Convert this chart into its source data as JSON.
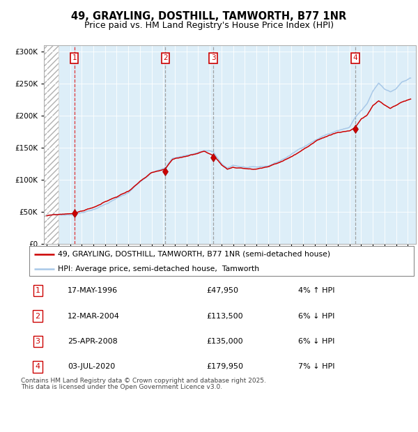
{
  "title": "49, GRAYLING, DOSTHILL, TAMWORTH, B77 1NR",
  "subtitle": "Price paid vs. HM Land Registry's House Price Index (HPI)",
  "ylim": [
    0,
    310000
  ],
  "yticks": [
    0,
    50000,
    100000,
    150000,
    200000,
    250000,
    300000
  ],
  "hpi_color": "#a8c8e8",
  "price_color": "#cc0000",
  "sale_prices": [
    47950,
    113500,
    135000,
    179950
  ],
  "sale_labels": [
    "1",
    "2",
    "3",
    "4"
  ],
  "sale_years": [
    1996.375,
    2004.167,
    2008.292,
    2020.5
  ],
  "dashed_color_1": "#dd2222",
  "dashed_color_234": "#999999",
  "background_plot": "#ddeef8",
  "legend_line1": "49, GRAYLING, DOSTHILL, TAMWORTH, B77 1NR (semi-detached house)",
  "legend_line2": "HPI: Average price, semi-detached house,  Tamworth",
  "table_entries": [
    {
      "num": "1",
      "date": "17-MAY-1996",
      "price": "£47,950",
      "hpi": "4% ↑ HPI"
    },
    {
      "num": "2",
      "date": "12-MAR-2004",
      "price": "£113,500",
      "hpi": "6% ↓ HPI"
    },
    {
      "num": "3",
      "date": "25-APR-2008",
      "price": "£135,000",
      "hpi": "6% ↓ HPI"
    },
    {
      "num": "4",
      "date": "03-JUL-2020",
      "price": "£179,950",
      "hpi": "7% ↓ HPI"
    }
  ],
  "footnote1": "Contains HM Land Registry data © Crown copyright and database right 2025.",
  "footnote2": "This data is licensed under the Open Government Licence v3.0."
}
